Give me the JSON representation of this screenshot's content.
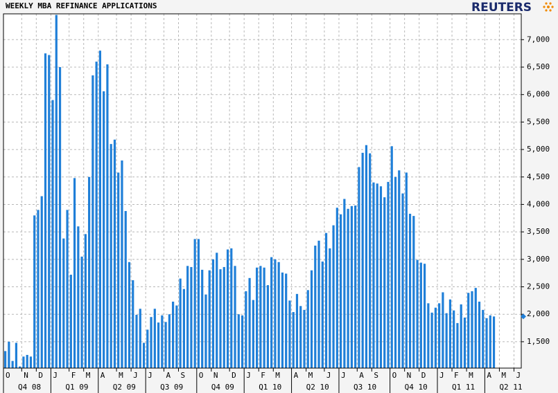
{
  "chart_data": {
    "type": "bar",
    "title": "WEEKLY MBA REFINANCE APPLICATIONS",
    "brand": "REUTERS",
    "categories": [
      "O",
      null,
      null,
      null,
      null,
      "N",
      null,
      null,
      null,
      "D",
      null,
      null,
      null,
      "J",
      null,
      null,
      null,
      null,
      "F",
      null,
      null,
      null,
      "M",
      null,
      null,
      null,
      "A",
      null,
      null,
      null,
      null,
      "M",
      null,
      null,
      null,
      "J",
      null,
      null,
      null,
      "J",
      null,
      null,
      null,
      null,
      "A",
      null,
      null,
      null,
      "S",
      null,
      null,
      null,
      null,
      "O",
      null,
      null,
      null,
      "N",
      null,
      null,
      null,
      null,
      "D",
      null,
      null,
      null,
      "J",
      null,
      null,
      null,
      "F",
      null,
      null,
      null,
      "M",
      null,
      null,
      null,
      null,
      "A",
      null,
      null,
      null,
      "M",
      null,
      null,
      null,
      null,
      "J",
      null,
      null,
      null,
      "J",
      null,
      null,
      null,
      null,
      "A",
      null,
      null,
      null,
      "S",
      null,
      null,
      null,
      null,
      "O",
      null,
      null,
      null,
      "N",
      null,
      null,
      null,
      "D",
      null,
      null,
      null,
      null,
      "J",
      null,
      null,
      null,
      "F",
      null,
      null,
      null,
      "M",
      null,
      null,
      null,
      null,
      "A",
      null,
      null,
      null,
      "M",
      null,
      null,
      null,
      "J",
      null
    ],
    "quarters": [
      "Q4 08",
      "Q1 09",
      "Q2 09",
      "Q3 09",
      "Q4 09",
      "Q1 10",
      "Q2 10",
      "Q3 10",
      "Q4 10",
      "Q1 11",
      "Q2 11"
    ],
    "values": [
      1330,
      1500,
      1150,
      1480,
      1050,
      1230,
      1260,
      1230,
      3800,
      3900,
      4150,
      6750,
      6720,
      5900,
      7450,
      6500,
      3380,
      3900,
      2720,
      4480,
      3600,
      3050,
      3460,
      4500,
      6350,
      6600,
      6800,
      6060,
      6550,
      5100,
      5180,
      4580,
      4800,
      3880,
      2950,
      2620,
      1990,
      2100,
      1480,
      1720,
      1950,
      2100,
      1850,
      1980,
      1860,
      2000,
      2230,
      2160,
      2650,
      2460,
      2880,
      2860,
      3370,
      3370,
      2810,
      2360,
      2800,
      3000,
      3120,
      2820,
      2860,
      3180,
      3200,
      2880,
      2000,
      1980,
      2420,
      2660,
      2260,
      2850,
      2880,
      2850,
      2530,
      3040,
      3000,
      2950,
      2760,
      2740,
      2250,
      2040,
      2370,
      2150,
      2080,
      2440,
      2800,
      3250,
      3340,
      2960,
      3480,
      3200,
      3620,
      3940,
      3820,
      4100,
      3920,
      3970,
      3980,
      4680,
      4940,
      5080,
      4930,
      4400,
      4380,
      4330,
      4130,
      4410,
      5060,
      4500,
      4620,
      4200,
      4580,
      3830,
      3790,
      2990,
      2940,
      2920,
      2200,
      2030,
      2120,
      2200,
      2400,
      2020,
      2270,
      2070,
      1840,
      2180,
      1940,
      2390,
      2420,
      2480,
      2230,
      2080,
      1930,
      1980,
      1960,
      null,
      null,
      null,
      null,
      null,
      null,
      null
    ],
    "color": "#1f7fd8",
    "ylim": [
      1020,
      7470
    ],
    "yticks": [
      {
        "value": 1500,
        "label": "1,500"
      },
      {
        "value": 2000,
        "label": "2,000"
      },
      {
        "value": 2500,
        "label": "2,500"
      },
      {
        "value": 3000,
        "label": "3,000"
      },
      {
        "value": 3500,
        "label": "3,500"
      },
      {
        "value": 4000,
        "label": "4,000"
      },
      {
        "value": 4500,
        "label": "4,500"
      },
      {
        "value": 5000,
        "label": "5,000"
      },
      {
        "value": 5500,
        "label": "5,500"
      },
      {
        "value": 6000,
        "label": "6,000"
      },
      {
        "value": 6500,
        "label": "6,500"
      },
      {
        "value": 7000,
        "label": "7,000"
      }
    ],
    "grid": true
  }
}
